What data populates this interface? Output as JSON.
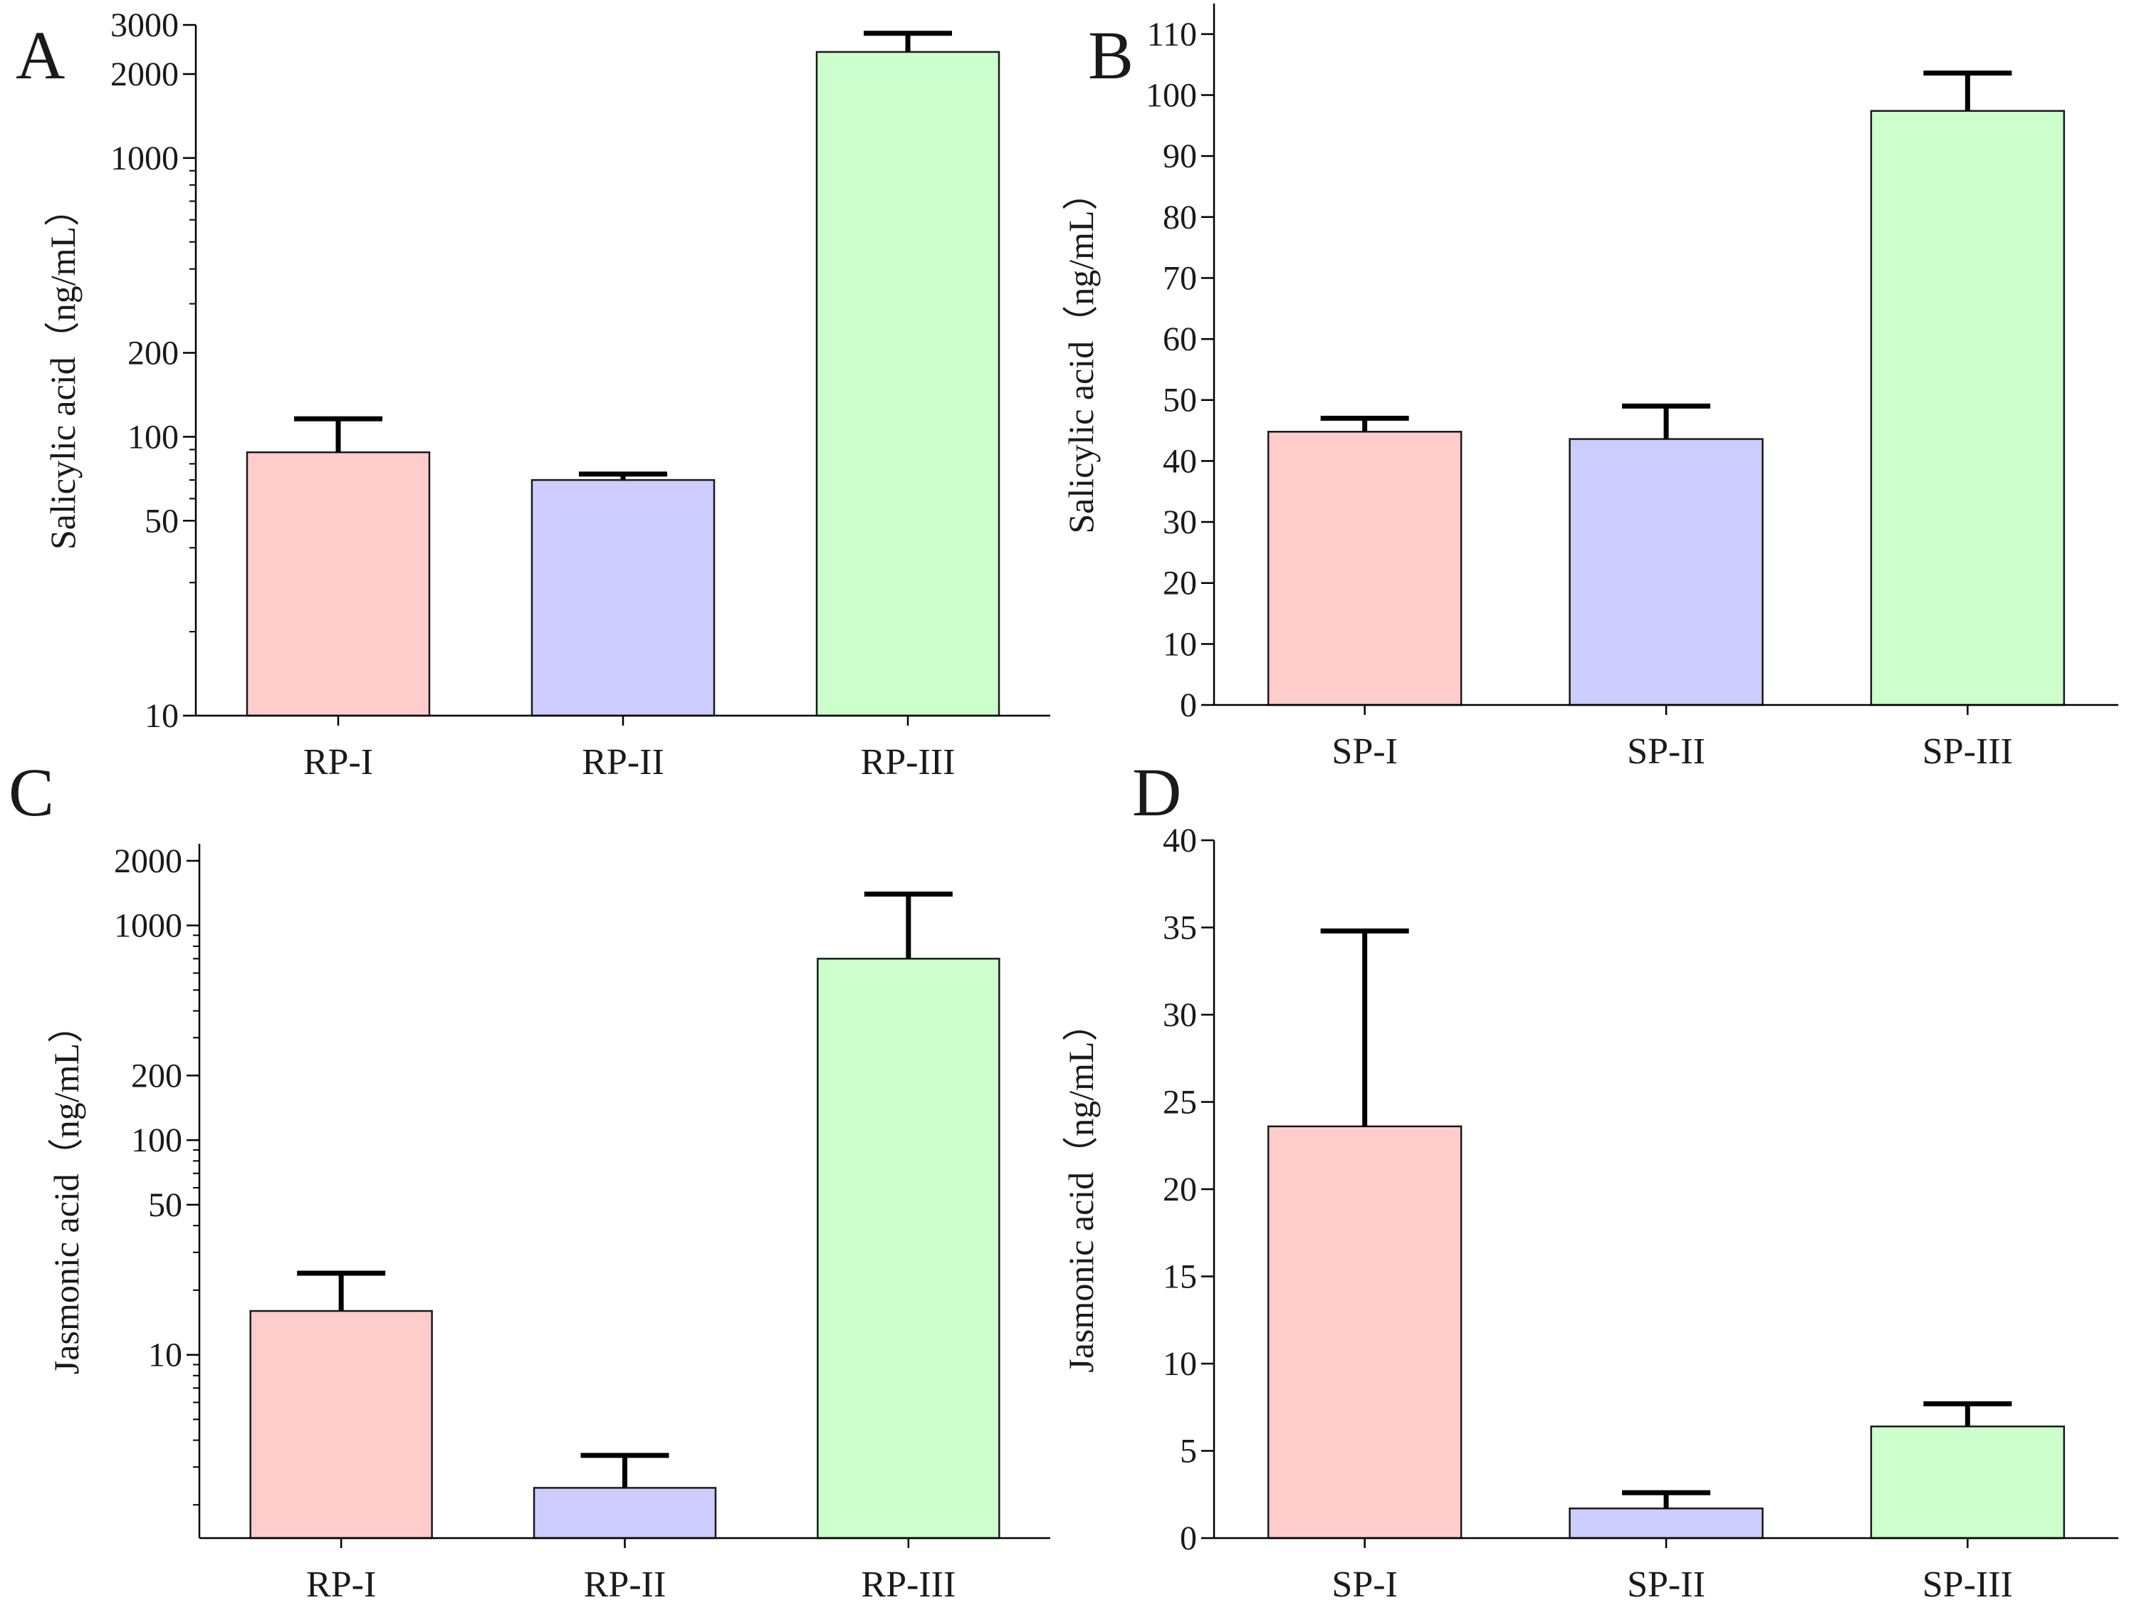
{
  "chart_data": [
    {
      "panel": "A",
      "type": "bar",
      "yscale": "log",
      "ylabel": "Salicylic acid（ng/mL）",
      "categories": [
        "RP-I",
        "RP-II",
        "RP-III"
      ],
      "values": [
        88,
        70,
        2400
      ],
      "error_upper": [
        116,
        73.5,
        2800
      ],
      "colors": [
        "#ffcccc",
        "#ccccff",
        "#ccffcc"
      ],
      "ylim": [
        10,
        3000
      ],
      "yticks": [
        10,
        50,
        100,
        200,
        1000,
        2000,
        3000
      ],
      "ytick_labels": [
        "10",
        "50",
        "100",
        "200",
        "1000",
        "2000",
        "3000"
      ]
    },
    {
      "panel": "B",
      "type": "bar",
      "yscale": "linear",
      "ylabel": "Salicylic acid（ng/mL）",
      "categories": [
        "SP-I",
        "SP-II",
        "SP-III"
      ],
      "values": [
        44.8,
        43.6,
        97.4
      ],
      "error_upper": [
        47.0,
        49.0,
        103.6
      ],
      "colors": [
        "#ffcccc",
        "#ccccff",
        "#ccffcc"
      ],
      "ylim": [
        0,
        115
      ],
      "yticks": [
        0,
        10,
        20,
        30,
        40,
        50,
        60,
        70,
        80,
        90,
        100,
        110
      ],
      "ytick_labels": [
        "0",
        "10",
        "20",
        "30",
        "40",
        "50",
        "60",
        "70",
        "80",
        "90",
        "100",
        "110"
      ]
    },
    {
      "panel": "C",
      "type": "bar",
      "yscale": "log",
      "ylabel": "Jasmonic acid（ng/mL）",
      "categories": [
        "RP-I",
        "RP-II",
        "RP-III"
      ],
      "values": [
        16,
        2.4,
        700
      ],
      "error_upper": [
        24,
        3.4,
        1400
      ],
      "colors": [
        "#ffcccc",
        "#ccccff",
        "#ccffcc"
      ],
      "ylim": [
        1.4,
        2400
      ],
      "yticks": [
        10,
        50,
        100,
        200,
        1000,
        2000
      ],
      "ytick_labels": [
        "10",
        "50",
        "100",
        "200",
        "1000",
        "2000"
      ]
    },
    {
      "panel": "D",
      "type": "bar",
      "yscale": "linear",
      "ylabel": "Jasmonic acid（ng/mL）",
      "categories": [
        "SP-I",
        "SP-II",
        "SP-III"
      ],
      "values": [
        23.6,
        1.7,
        6.4
      ],
      "error_upper": [
        34.8,
        2.6,
        7.7
      ],
      "colors": [
        "#ffcccc",
        "#ccccff",
        "#ccffcc"
      ],
      "ylim": [
        0,
        40
      ],
      "yticks": [
        0,
        5,
        10,
        15,
        20,
        25,
        30,
        35,
        40
      ],
      "ytick_labels": [
        "0",
        "5",
        "10",
        "15",
        "20",
        "25",
        "30",
        "35",
        "40"
      ]
    }
  ]
}
